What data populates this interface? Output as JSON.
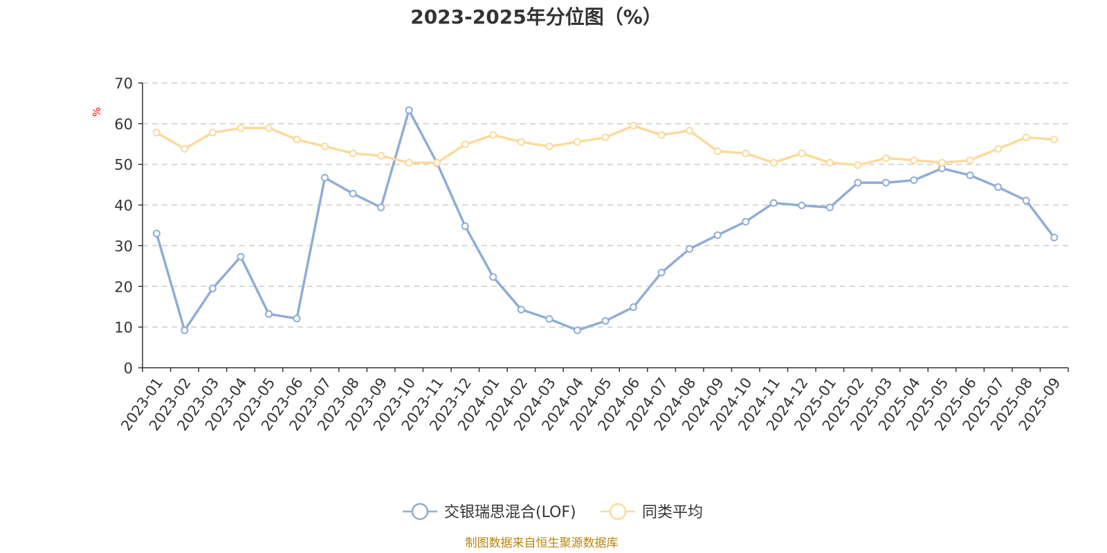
{
  "chart_data": {
    "type": "line",
    "title": "2023-2025年分位图（%）",
    "ylabel": "%",
    "ylim": [
      0,
      70
    ],
    "yticks": [
      0,
      10,
      20,
      30,
      40,
      50,
      60,
      70
    ],
    "grid": "horizontal-dashed",
    "legend_position": "bottom-center",
    "categories": [
      "2023-01",
      "2023-02",
      "2023-03",
      "2023-04",
      "2023-05",
      "2023-06",
      "2023-07",
      "2023-08",
      "2023-09",
      "2023-10",
      "2023-11",
      "2023-12",
      "2024-01",
      "2024-02",
      "2024-03",
      "2024-04",
      "2024-05",
      "2024-06",
      "2024-07",
      "2024-08",
      "2024-09",
      "2024-10",
      "2024-11",
      "2024-12",
      "2025-01",
      "2025-02",
      "2025-03",
      "2025-04",
      "2025-05",
      "2025-06",
      "2025-07",
      "2025-08",
      "2025-09"
    ],
    "series": [
      {
        "name": "交银瑞思混合(LOF)",
        "color": "#8EADD6",
        "values": [
          33.0,
          9.2,
          19.5,
          27.3,
          13.2,
          12.1,
          46.7,
          42.8,
          39.4,
          63.3,
          50.3,
          34.8,
          22.3,
          14.3,
          12.0,
          9.2,
          11.5,
          14.9,
          23.4,
          29.2,
          32.6,
          35.9,
          40.5,
          39.9,
          39.4,
          45.5,
          45.5,
          46.1,
          49.0,
          47.3,
          44.4,
          41.1,
          32.0
        ]
      },
      {
        "name": "同类平均",
        "color": "#FDD99A",
        "values": [
          57.8,
          53.8,
          57.8,
          58.9,
          58.9,
          56.1,
          54.4,
          52.7,
          52.1,
          50.4,
          50.4,
          54.9,
          57.2,
          55.5,
          54.4,
          55.5,
          56.6,
          59.5,
          57.2,
          58.3,
          53.2,
          52.7,
          50.4,
          52.7,
          50.4,
          49.8,
          51.5,
          51.0,
          50.4,
          51.0,
          53.8,
          56.6,
          56.1
        ]
      }
    ],
    "axis_color": "#333333",
    "grid_color": "#cccccc",
    "unit_color": "#ff0000"
  },
  "footer": {
    "source": "制图数据来自恒生聚源数据库",
    "source_color": "#B8860B"
  }
}
